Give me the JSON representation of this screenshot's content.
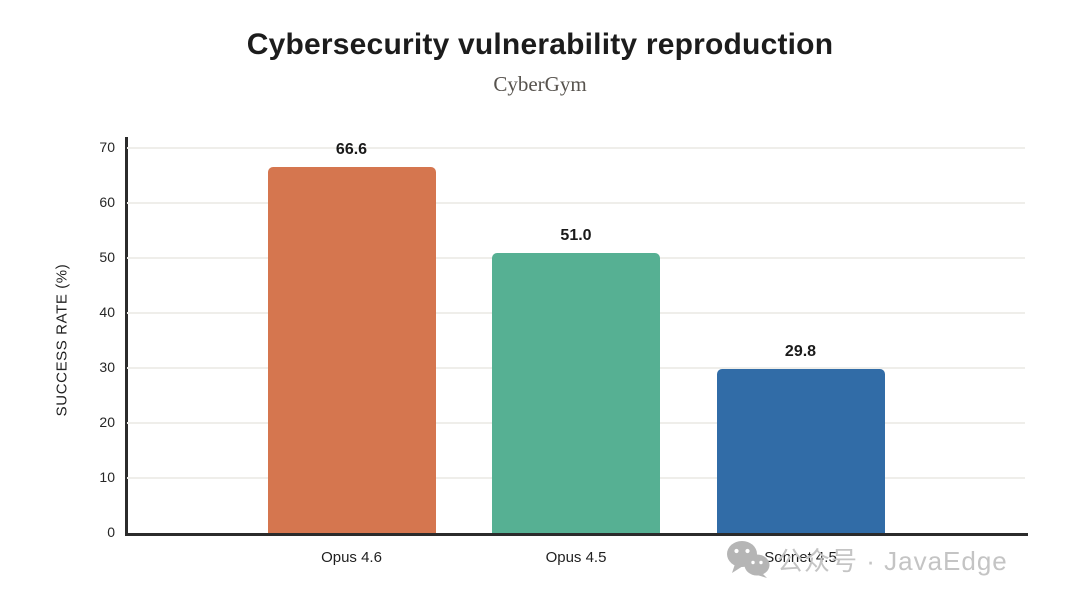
{
  "chart_data": {
    "type": "bar",
    "title": "Cybersecurity vulnerability reproduction",
    "subtitle": "CyberGym",
    "categories": [
      "Opus 4.6",
      "Opus 4.5",
      "Sonnet 4.5"
    ],
    "values": [
      66.6,
      51.0,
      29.8
    ],
    "value_labels": [
      "66.6",
      "51.0",
      "29.8"
    ],
    "bar_colors": [
      "#d5764f",
      "#56b093",
      "#316ca7"
    ],
    "xlabel": "",
    "ylabel": "SUCCESS RATE (%)",
    "ylim": [
      0,
      70
    ],
    "yticks": [
      0,
      10,
      20,
      30,
      40,
      50,
      60,
      70
    ],
    "grid": "horizontal-light",
    "legend": "none",
    "colors": {
      "axis": "#2b2b2b",
      "gridline": "#efeeea",
      "title": "#1c1c1c",
      "subtitle": "#57534e",
      "tick_label": "#262626",
      "value_label": "#1a1a1a",
      "background": "#ffffff"
    }
  },
  "watermark": {
    "icon": "wechat-icon",
    "text": "公众号 · JavaEdge",
    "color": "#c4c4c4",
    "icon_color": "#b5b5b5"
  }
}
